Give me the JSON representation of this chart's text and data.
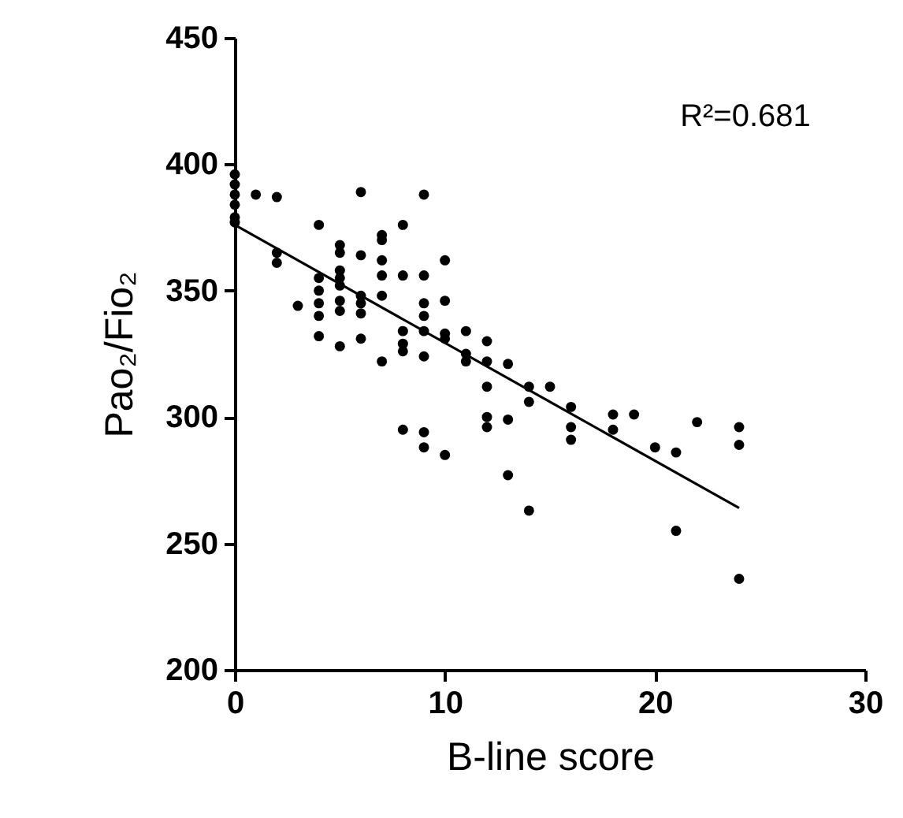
{
  "chart_data": {
    "type": "scatter",
    "xlabel": "B-line score",
    "ylabel": "Pao₂/Fio₂",
    "annotations": [
      "R²=0.681"
    ],
    "xlim": [
      0,
      30
    ],
    "xticks": [
      0,
      10,
      20,
      30
    ],
    "ylim": [
      200,
      450
    ],
    "yticks": [
      200,
      250,
      300,
      350,
      400,
      450
    ],
    "grid": false,
    "marker": "circle",
    "series": [
      {
        "color": "#000000",
        "x": [
          0,
          0,
          0,
          0,
          0,
          0,
          1,
          2,
          2,
          2,
          3,
          4,
          4,
          4,
          4,
          4,
          4,
          5,
          5,
          5,
          5,
          5,
          5,
          5,
          5,
          6,
          6,
          6,
          6,
          6,
          6,
          7,
          7,
          7,
          7,
          7,
          7,
          8,
          8,
          8,
          8,
          8,
          8,
          9,
          9,
          9,
          9,
          9,
          9,
          9,
          9,
          10,
          10,
          10,
          10,
          10,
          11,
          11,
          11,
          12,
          12,
          12,
          12,
          12,
          13,
          13,
          13,
          14,
          14,
          14,
          15,
          16,
          16,
          16,
          18,
          18,
          19,
          20,
          21,
          21,
          22,
          24,
          24,
          24
        ],
        "values": [
          396,
          392,
          388,
          384,
          379,
          377,
          388,
          387,
          365,
          361,
          344,
          376,
          355,
          350,
          345,
          340,
          332,
          368,
          365,
          358,
          355,
          352,
          346,
          342,
          328,
          389,
          364,
          348,
          345,
          341,
          331,
          372,
          370,
          362,
          356,
          348,
          322,
          376,
          356,
          334,
          329,
          326,
          295,
          388,
          356,
          345,
          340,
          334,
          324,
          294,
          288,
          362,
          346,
          333,
          331,
          285,
          334,
          325,
          322,
          330,
          322,
          312,
          300,
          296,
          321,
          299,
          277,
          312,
          306,
          263,
          312,
          304,
          296,
          291,
          301,
          295,
          301,
          288,
          286,
          255,
          298,
          296,
          289,
          236
        ]
      },
      {
        "type": "line",
        "marker": "none",
        "color": "#000000",
        "x": [
          0,
          24
        ],
        "values": [
          376,
          264
        ]
      }
    ]
  }
}
